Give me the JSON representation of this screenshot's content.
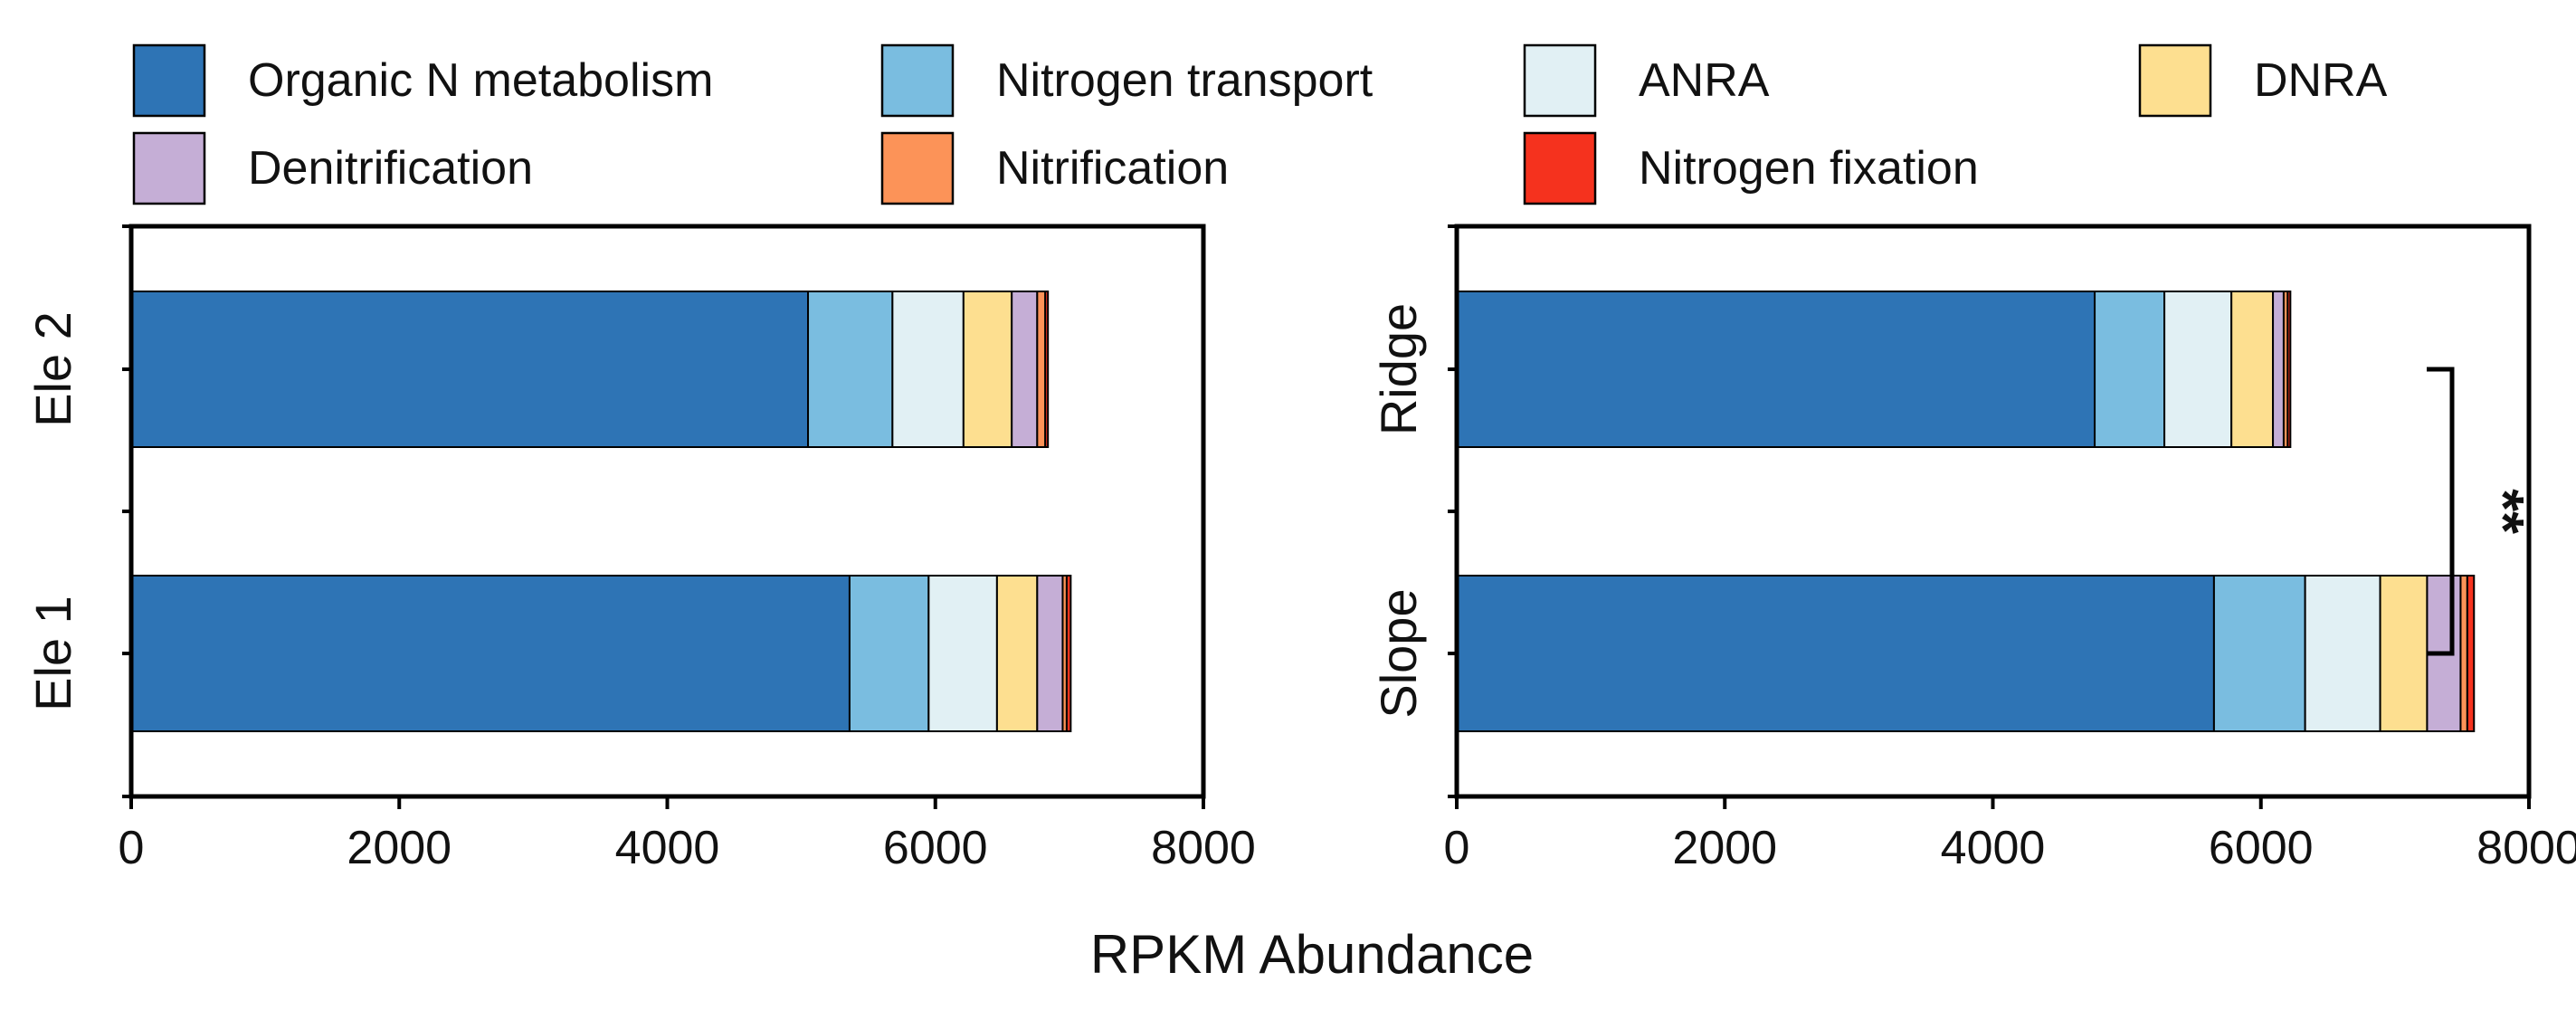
{
  "legend": [
    {
      "name": "Organic N metabolism",
      "color": "#2e74b5"
    },
    {
      "name": "Nitrogen transport",
      "color": "#7abde0"
    },
    {
      "name": "ANRA",
      "color": "#e1f0f4"
    },
    {
      "name": "DNRA",
      "color": "#fddf90"
    },
    {
      "name": "Denitrification",
      "color": "#c5aed6"
    },
    {
      "name": "Nitrification",
      "color": "#fc9358"
    },
    {
      "name": "Nitrogen fixation",
      "color": "#f5321e"
    }
  ],
  "x_axis_title": "RPKM Abundance",
  "chart_data": [
    {
      "type": "bar",
      "orientation": "horizontal",
      "stacked": true,
      "categories": [
        "Ele 2",
        "Ele 1"
      ],
      "xlim": [
        0,
        8000
      ],
      "xticks": [
        0,
        2000,
        4000,
        6000,
        8000
      ],
      "xlabel": "RPKM Abundance",
      "series": [
        {
          "name": "Organic N metabolism",
          "values": [
            5050,
            5360
          ]
        },
        {
          "name": "Nitrogen transport",
          "values": [
            630,
            590
          ]
        },
        {
          "name": "ANRA",
          "values": [
            530,
            510
          ]
        },
        {
          "name": "DNRA",
          "values": [
            360,
            300
          ]
        },
        {
          "name": "Denitrification",
          "values": [
            190,
            190
          ]
        },
        {
          "name": "Nitrification",
          "values": [
            60,
            30
          ]
        },
        {
          "name": "Nitrogen fixation",
          "values": [
            20,
            30
          ]
        }
      ]
    },
    {
      "type": "bar",
      "orientation": "horizontal",
      "stacked": true,
      "categories": [
        "Ridge",
        "Slope"
      ],
      "xlim": [
        0,
        8000
      ],
      "xticks": [
        0,
        2000,
        4000,
        6000,
        8000
      ],
      "xlabel": "RPKM Abundance",
      "series": [
        {
          "name": "Organic N metabolism",
          "values": [
            4760,
            5650
          ]
        },
        {
          "name": "Nitrogen transport",
          "values": [
            520,
            680
          ]
        },
        {
          "name": "ANRA",
          "values": [
            500,
            560
          ]
        },
        {
          "name": "DNRA",
          "values": [
            310,
            350
          ]
        },
        {
          "name": "Denitrification",
          "values": [
            80,
            250
          ]
        },
        {
          "name": "Nitrification",
          "values": [
            30,
            50
          ]
        },
        {
          "name": "Nitrogen fixation",
          "values": [
            20,
            50
          ]
        }
      ],
      "significance": {
        "label": "**",
        "between": [
          "Ridge",
          "Slope"
        ]
      }
    }
  ]
}
